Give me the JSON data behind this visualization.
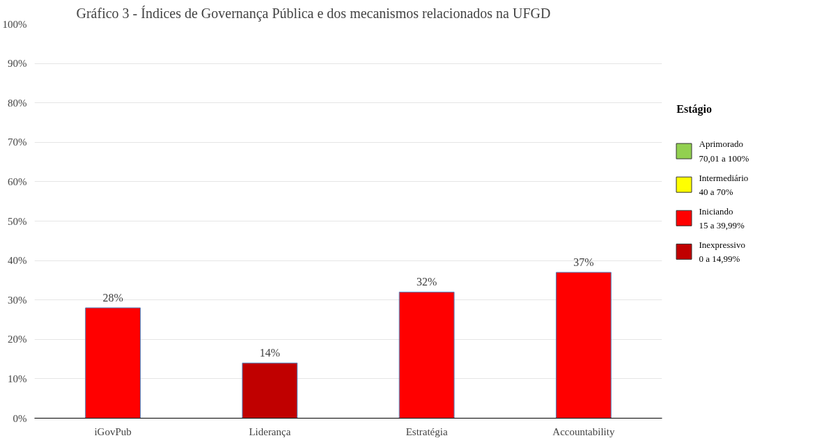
{
  "chart_data": {
    "type": "bar",
    "title": "Gráfico 3 - Índices de Governança Pública e dos mecanismos relacionados na UFGD",
    "legend_title": "Estágio",
    "categories": [
      "iGovPub",
      "Liderança",
      "Estratégia",
      "Accountability"
    ],
    "series": [
      {
        "name": "Aprimorado\n70,01 a 100%",
        "color": "#92d050",
        "values": [
          null,
          null,
          null,
          null
        ]
      },
      {
        "name": "Intermediário\n40 a 70%",
        "color": "#ffff00",
        "values": [
          null,
          null,
          null,
          null
        ]
      },
      {
        "name": "Iniciando\n15 a 39,99%",
        "color": "#ff0000",
        "values": [
          28,
          null,
          32,
          37
        ],
        "value_labels": [
          "28%",
          null,
          "32%",
          "37%"
        ]
      },
      {
        "name": "Inexpressivo\n0 a 14,99%",
        "color": "#c00000",
        "values": [
          null,
          14,
          null,
          null
        ],
        "value_labels": [
          null,
          "14%",
          null,
          null
        ]
      }
    ],
    "ylim": [
      0,
      100
    ],
    "yticks": [
      {
        "value": 0,
        "label": "0%"
      },
      {
        "value": 10,
        "label": "10%"
      },
      {
        "value": 20,
        "label": "20%"
      },
      {
        "value": 30,
        "label": "30%"
      },
      {
        "value": 40,
        "label": "40%"
      },
      {
        "value": 50,
        "label": "50%"
      },
      {
        "value": 60,
        "label": "60%"
      },
      {
        "value": 70,
        "label": "70%"
      },
      {
        "value": 80,
        "label": "80%"
      },
      {
        "value": 90,
        "label": "90%"
      },
      {
        "value": 100,
        "label": "100%"
      }
    ],
    "grid": "y",
    "legend": "right"
  }
}
